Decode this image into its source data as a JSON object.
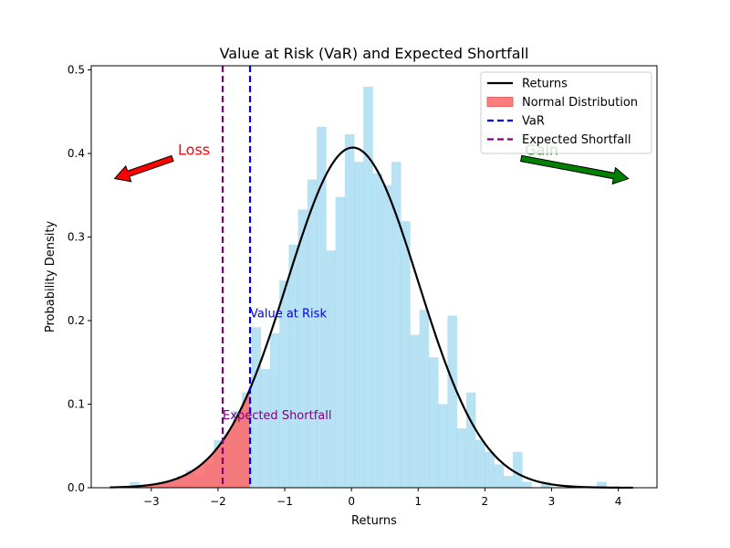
{
  "chart_data": {
    "type": "histogram",
    "title": "Value at Risk (VaR) and Expected Shortfall",
    "xlabel": "Returns",
    "ylabel": "Probability Density",
    "xlim": [
      -3.9,
      4.58
    ],
    "ylim": [
      0,
      0.505
    ],
    "xticks": [
      -3,
      -2,
      -1,
      0,
      1,
      2,
      3,
      4
    ],
    "yticks": [
      0.0,
      0.1,
      0.2,
      0.3,
      0.4,
      0.5
    ],
    "xtick_labels": [
      "−3",
      "−2",
      "−1",
      "0",
      "1",
      "2",
      "3",
      "4"
    ],
    "ytick_labels": [
      "0.0",
      "0.1",
      "0.2",
      "0.3",
      "0.4",
      "0.5"
    ],
    "histogram": {
      "bin_edges": [
        -3.32,
        -3.18,
        -3.04,
        -2.9,
        -2.76,
        -2.62,
        -2.48,
        -2.34,
        -2.2,
        -2.06,
        -1.92,
        -1.78,
        -1.64,
        -1.5,
        -1.36,
        -1.22,
        -1.08,
        -0.94,
        -0.8,
        -0.66,
        -0.52,
        -0.38,
        -0.24,
        -0.1,
        0.04,
        0.18,
        0.32,
        0.46,
        0.6,
        0.74,
        0.88,
        1.02,
        1.16,
        1.3,
        1.44,
        1.58,
        1.72,
        1.86,
        2.0,
        2.14,
        2.28,
        2.42,
        2.56,
        2.7,
        2.84,
        2.98,
        3.12,
        3.26,
        3.4,
        3.54,
        3.68,
        3.82
      ],
      "densities": [
        0.007,
        0.0,
        0.0,
        0.007,
        0.007,
        0.014,
        0.021,
        0.014,
        0.028,
        0.057,
        0.064,
        0.092,
        0.114,
        0.192,
        0.142,
        0.185,
        0.248,
        0.291,
        0.333,
        0.369,
        0.432,
        0.284,
        0.348,
        0.423,
        0.39,
        0.48,
        0.376,
        0.362,
        0.39,
        0.319,
        0.183,
        0.213,
        0.156,
        0.1,
        0.206,
        0.071,
        0.114,
        0.057,
        0.043,
        0.028,
        0.014,
        0.043,
        0.007,
        0.0,
        0.007,
        0.0,
        0.0,
        0.0,
        0.0,
        0.0,
        0.007
      ],
      "color": "#87ceeb"
    },
    "series": [
      {
        "name": "Returns",
        "kind": "line",
        "mean": 0.02,
        "std": 0.98,
        "x_range": [
          -3.62,
          4.22
        ],
        "color": "#000000"
      },
      {
        "name": "Normal Distribution",
        "kind": "fill_under_curve",
        "x_range": [
          -3.62,
          -1.52
        ],
        "color": "#ff6666"
      },
      {
        "name": "VaR",
        "kind": "vline",
        "x": -1.52,
        "color": "#0000ee"
      },
      {
        "name": "Expected Shortfall",
        "kind": "vline",
        "x": -1.93,
        "color": "#800080"
      }
    ],
    "annotations": [
      {
        "text": "Value at Risk",
        "x": -1.52,
        "y": 0.204,
        "color": "#0000ee"
      },
      {
        "text": "Expected Shortfall",
        "x": -1.93,
        "y": 0.082,
        "color": "#800080"
      },
      {
        "text": "Loss",
        "x": -2.6,
        "y": 0.405,
        "color": "#ff0000",
        "arrow_to": [
          -3.55,
          0.37
        ],
        "arrow_color": "#ff0000"
      },
      {
        "text": "Gain",
        "x": 2.6,
        "y": 0.405,
        "color": "#008000",
        "arrow_to": [
          4.15,
          0.37
        ],
        "arrow_color": "#008000"
      }
    ],
    "legend": {
      "position": "top-right",
      "entries": [
        {
          "label": "Returns",
          "style": "line",
          "color": "#000000"
        },
        {
          "label": "Normal Distribution",
          "style": "patch",
          "color": "#ff6666"
        },
        {
          "label": "VaR",
          "style": "dashed",
          "color": "#0000ee"
        },
        {
          "label": "Expected Shortfall",
          "style": "dashed",
          "color": "#800080"
        }
      ]
    }
  }
}
